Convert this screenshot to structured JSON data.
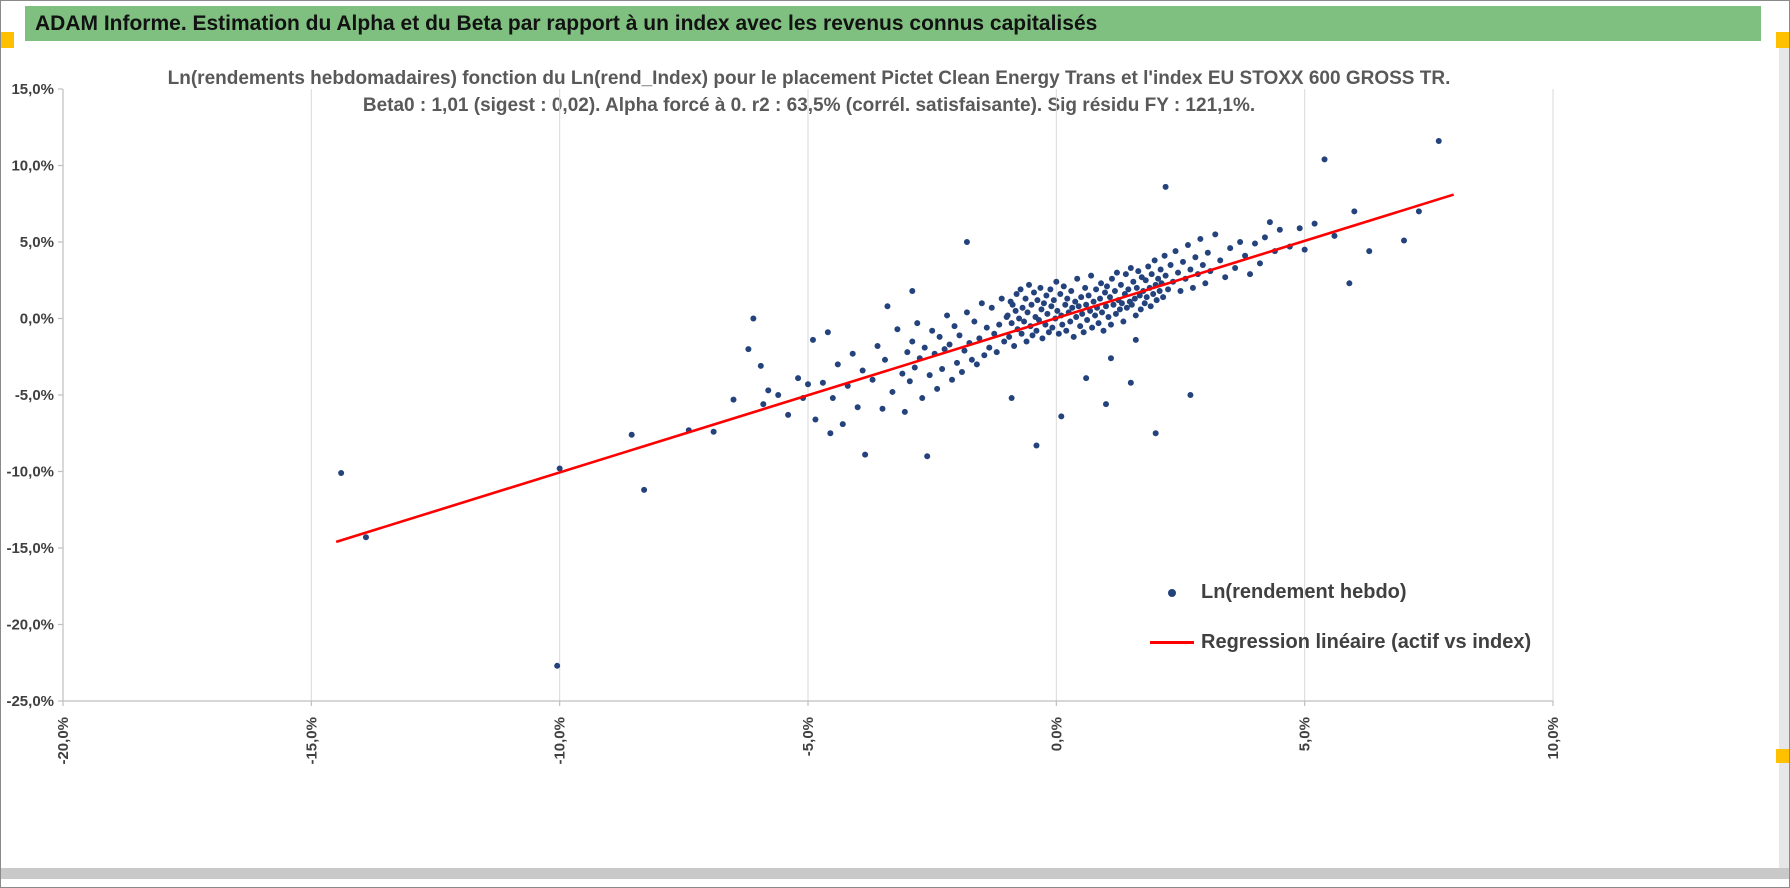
{
  "header": {
    "title": "ADAM Informe. Estimation du Alpha et du Beta par rapport à un index avec les revenus connus capitalisés",
    "bg_color": "#7FC080",
    "accent_color": "#FFC000"
  },
  "chart_data": {
    "type": "scatter",
    "title_line1": "Ln(rendements hebdomadaires) fonction du Ln(rend_Index) pour le placement Pictet Clean Energy Trans et l'index EU STOXX 600 GROSS TR.",
    "title_line2": "Beta0 : 1,01 (sigest : 0,02). Alpha forcé à 0. r2 : 63,5% (corrél. satisfaisante). Sig résidu FY : 121,1%.",
    "xlabel": "",
    "ylabel": "",
    "xlim": [
      -20,
      10
    ],
    "ylim": [
      -25,
      15
    ],
    "grid": "vertical-only",
    "x_ticks": [
      {
        "v": -20,
        "label": "-20,0%"
      },
      {
        "v": -15,
        "label": "-15,0%"
      },
      {
        "v": -10,
        "label": "-10,0%"
      },
      {
        "v": -5,
        "label": "-5,0%"
      },
      {
        "v": 0,
        "label": "0,0%"
      },
      {
        "v": 5,
        "label": "5,0%"
      },
      {
        "v": 10,
        "label": "10,0%"
      }
    ],
    "y_ticks": [
      {
        "v": 15,
        "label": "15,0%"
      },
      {
        "v": 10,
        "label": "10,0%"
      },
      {
        "v": 5,
        "label": "5,0%"
      },
      {
        "v": 0,
        "label": "0,0%"
      },
      {
        "v": -5,
        "label": "-5,0%"
      },
      {
        "v": -10,
        "label": "-10,0%"
      },
      {
        "v": -15,
        "label": "-15,0%"
      },
      {
        "v": -20,
        "label": "-20,0%"
      },
      {
        "v": -25,
        "label": "-25,0%"
      }
    ],
    "colors": {
      "point": "#24427C",
      "line": "#FF0000",
      "grid": "#D9D9D9",
      "axis": "#BFBFBF",
      "tick_label": "#404040",
      "title": "#595959"
    },
    "legend": {
      "position": "right-middle",
      "entries": [
        {
          "label": "Ln(rendement hebdo)",
          "marker": "dot",
          "color": "#24427C"
        },
        {
          "label": "Regression linéaire (actif vs index)",
          "marker": "line",
          "color": "#FF0000"
        }
      ]
    },
    "stats": {
      "beta0": "1,01",
      "sigest": "0,02",
      "alpha": "forcé à 0",
      "r2": "63,5%",
      "sig_residu_FY": "121,1%"
    },
    "series": [
      {
        "name": "Ln(rendement hebdo)",
        "type": "scatter",
        "color": "#24427C",
        "points": [
          [
            -14.4,
            -10.1
          ],
          [
            -13.9,
            -14.3
          ],
          [
            -10.05,
            -22.7
          ],
          [
            -10.0,
            -9.8
          ],
          [
            -8.55,
            -7.6
          ],
          [
            -8.3,
            -11.2
          ],
          [
            -7.4,
            -7.3
          ],
          [
            -6.9,
            -7.4
          ],
          [
            -6.5,
            -5.3
          ],
          [
            -6.2,
            -2.0
          ],
          [
            -6.1,
            0.0
          ],
          [
            -5.95,
            -3.1
          ],
          [
            -5.9,
            -5.6
          ],
          [
            -5.8,
            -4.7
          ],
          [
            -5.6,
            -5.0
          ],
          [
            -5.4,
            -6.3
          ],
          [
            -5.2,
            -3.9
          ],
          [
            -5.1,
            -5.2
          ],
          [
            -5.0,
            -4.3
          ],
          [
            -4.9,
            -1.4
          ],
          [
            -4.85,
            -6.6
          ],
          [
            -4.7,
            -4.2
          ],
          [
            -4.6,
            -0.9
          ],
          [
            -4.55,
            -7.5
          ],
          [
            -4.5,
            -5.2
          ],
          [
            -4.4,
            -3.0
          ],
          [
            -4.3,
            -6.9
          ],
          [
            -4.2,
            -4.4
          ],
          [
            -4.1,
            -2.3
          ],
          [
            -4.0,
            -5.8
          ],
          [
            -3.9,
            -3.4
          ],
          [
            -3.85,
            -8.9
          ],
          [
            -3.7,
            -4.0
          ],
          [
            -3.6,
            -1.8
          ],
          [
            -3.5,
            -5.9
          ],
          [
            -3.45,
            -2.7
          ],
          [
            -3.4,
            0.8
          ],
          [
            -3.3,
            -4.8
          ],
          [
            -3.2,
            -0.7
          ],
          [
            -3.1,
            -3.6
          ],
          [
            -3.05,
            -6.1
          ],
          [
            -3.0,
            -2.2
          ],
          [
            -2.95,
            -4.1
          ],
          [
            -2.9,
            1.8
          ],
          [
            -2.9,
            -1.5
          ],
          [
            -2.85,
            -3.2
          ],
          [
            -2.8,
            -0.3
          ],
          [
            -2.75,
            -2.6
          ],
          [
            -2.7,
            -5.2
          ],
          [
            -2.65,
            -1.9
          ],
          [
            -2.6,
            -9.0
          ],
          [
            -2.55,
            -3.7
          ],
          [
            -2.5,
            -0.8
          ],
          [
            -2.45,
            -2.3
          ],
          [
            -2.4,
            -4.6
          ],
          [
            -2.35,
            -1.2
          ],
          [
            -2.3,
            -3.3
          ],
          [
            -2.25,
            -2.0
          ],
          [
            -2.2,
            0.2
          ],
          [
            -2.15,
            -1.7
          ],
          [
            -2.1,
            -4.0
          ],
          [
            -2.05,
            -0.5
          ],
          [
            -2.0,
            -2.9
          ],
          [
            -1.95,
            -1.1
          ],
          [
            -1.9,
            -3.5
          ],
          [
            -1.85,
            -2.1
          ],
          [
            -1.8,
            5.0
          ],
          [
            -1.8,
            0.4
          ],
          [
            -1.75,
            -1.6
          ],
          [
            -1.7,
            -2.7
          ],
          [
            -1.65,
            -0.2
          ],
          [
            -1.6,
            -3.0
          ],
          [
            -1.55,
            -1.3
          ],
          [
            -1.5,
            1.0
          ],
          [
            -1.45,
            -2.4
          ],
          [
            -1.4,
            -0.6
          ],
          [
            -1.35,
            -1.9
          ],
          [
            -1.3,
            0.7
          ],
          [
            -1.25,
            -1.0
          ],
          [
            -1.2,
            -2.2
          ],
          [
            -1.15,
            -0.4
          ],
          [
            -1.1,
            1.3
          ],
          [
            -1.05,
            -1.5
          ],
          [
            -1.0,
            0.1
          ],
          [
            -0.98,
            0.2
          ],
          [
            -0.95,
            -1.2
          ],
          [
            -0.92,
            1.1
          ],
          [
            -0.9,
            -0.3
          ],
          [
            -0.88,
            0.9
          ],
          [
            -0.85,
            -1.8
          ],
          [
            -0.82,
            0.5
          ],
          [
            -0.8,
            1.6
          ],
          [
            -0.78,
            -0.7
          ],
          [
            -0.75,
            0.0
          ],
          [
            -0.72,
            1.9
          ],
          [
            -0.7,
            -1.0
          ],
          [
            -0.68,
            0.7
          ],
          [
            -0.65,
            -0.2
          ],
          [
            -0.62,
            1.3
          ],
          [
            -0.6,
            -1.5
          ],
          [
            -0.58,
            0.4
          ],
          [
            -0.55,
            2.2
          ],
          [
            -0.52,
            -0.5
          ],
          [
            -0.5,
            0.9
          ],
          [
            -0.48,
            -1.1
          ],
          [
            -0.45,
            1.7
          ],
          [
            -0.42,
            0.1
          ],
          [
            -0.4,
            -0.8
          ],
          [
            -0.38,
            1.2
          ],
          [
            -0.35,
            -0.1
          ],
          [
            -0.32,
            2.0
          ],
          [
            -0.3,
            0.6
          ],
          [
            -0.28,
            -1.3
          ],
          [
            -0.25,
            1.0
          ],
          [
            -0.22,
            -0.4
          ],
          [
            -0.2,
            1.5
          ],
          [
            -0.18,
            0.3
          ],
          [
            -0.15,
            -0.9
          ],
          [
            -0.12,
            1.9
          ],
          [
            -0.1,
            0.8
          ],
          [
            -0.08,
            -0.6
          ],
          [
            -0.05,
            1.2
          ],
          [
            -0.02,
            0.0
          ],
          [
            0.0,
            2.4
          ],
          [
            0.02,
            0.5
          ],
          [
            0.05,
            -1.0
          ],
          [
            0.08,
            1.6
          ],
          [
            0.1,
            0.2
          ],
          [
            0.12,
            -0.4
          ],
          [
            0.15,
            2.1
          ],
          [
            0.18,
            0.9
          ],
          [
            0.2,
            -0.8
          ],
          [
            0.22,
            1.3
          ],
          [
            0.25,
            0.4
          ],
          [
            0.28,
            -0.2
          ],
          [
            0.3,
            1.8
          ],
          [
            0.32,
            0.7
          ],
          [
            0.35,
            -1.2
          ],
          [
            0.38,
            1.1
          ],
          [
            0.4,
            0.1
          ],
          [
            0.42,
            2.6
          ],
          [
            0.45,
            0.8
          ],
          [
            0.48,
            -0.5
          ],
          [
            0.5,
            1.4
          ],
          [
            0.52,
            0.3
          ],
          [
            0.55,
            -0.9
          ],
          [
            0.58,
            2.0
          ],
          [
            0.6,
            0.9
          ],
          [
            0.62,
            -0.1
          ],
          [
            0.65,
            1.5
          ],
          [
            0.68,
            0.5
          ],
          [
            0.7,
            2.8
          ],
          [
            0.72,
            -0.6
          ],
          [
            0.75,
            1.1
          ],
          [
            0.78,
            0.2
          ],
          [
            0.8,
            1.9
          ],
          [
            0.82,
            0.7
          ],
          [
            0.85,
            -0.3
          ],
          [
            0.88,
            1.3
          ],
          [
            0.9,
            2.3
          ],
          [
            0.92,
            0.4
          ],
          [
            0.95,
            -0.8
          ],
          [
            0.98,
            1.7
          ],
          [
            1.0,
            0.8
          ],
          [
            1.02,
            2.1
          ],
          [
            1.05,
            0.1
          ],
          [
            1.08,
            1.4
          ],
          [
            1.1,
            -0.4
          ],
          [
            1.12,
            2.6
          ],
          [
            1.15,
            0.9
          ],
          [
            1.18,
            1.8
          ],
          [
            1.2,
            0.3
          ],
          [
            1.22,
            3.0
          ],
          [
            1.25,
            1.2
          ],
          [
            1.28,
            0.6
          ],
          [
            1.3,
            2.2
          ],
          [
            1.32,
            1.0
          ],
          [
            1.35,
            -0.2
          ],
          [
            1.38,
            1.6
          ],
          [
            1.4,
            2.9
          ],
          [
            1.42,
            0.7
          ],
          [
            1.45,
            1.9
          ],
          [
            1.48,
            1.1
          ],
          [
            1.5,
            3.3
          ],
          [
            1.52,
            0.9
          ],
          [
            1.55,
            2.4
          ],
          [
            1.58,
            1.3
          ],
          [
            1.6,
            0.2
          ],
          [
            1.62,
            2.0
          ],
          [
            1.65,
            3.1
          ],
          [
            1.68,
            1.5
          ],
          [
            1.7,
            0.6
          ],
          [
            1.72,
            2.7
          ],
          [
            1.75,
            1.8
          ],
          [
            1.78,
            1.0
          ],
          [
            1.8,
            2.5
          ],
          [
            1.82,
            1.4
          ],
          [
            1.85,
            3.4
          ],
          [
            1.88,
            2.0
          ],
          [
            1.9,
            0.8
          ],
          [
            1.92,
            2.9
          ],
          [
            1.95,
            1.6
          ],
          [
            1.98,
            3.8
          ],
          [
            2.0,
            2.2
          ],
          [
            2.02,
            1.2
          ],
          [
            2.05,
            2.6
          ],
          [
            2.08,
            1.8
          ],
          [
            2.1,
            3.2
          ],
          [
            2.12,
            2.3
          ],
          [
            2.15,
            1.4
          ],
          [
            2.18,
            4.1
          ],
          [
            2.2,
            2.8
          ],
          [
            2.25,
            1.9
          ],
          [
            2.3,
            3.5
          ],
          [
            -0.9,
            -5.2
          ],
          [
            -0.4,
            -8.3
          ],
          [
            0.1,
            -6.4
          ],
          [
            0.6,
            -3.9
          ],
          [
            1.0,
            -5.6
          ],
          [
            1.1,
            -2.6
          ],
          [
            1.5,
            -4.2
          ],
          [
            1.6,
            -1.4
          ],
          [
            2.0,
            -7.5
          ],
          [
            2.7,
            -5.0
          ],
          [
            2.2,
            8.6
          ],
          [
            2.35,
            2.4
          ],
          [
            2.4,
            4.4
          ],
          [
            2.45,
            3.0
          ],
          [
            2.5,
            1.8
          ],
          [
            2.55,
            3.7
          ],
          [
            2.6,
            2.6
          ],
          [
            2.65,
            4.8
          ],
          [
            2.7,
            3.2
          ],
          [
            2.75,
            2.0
          ],
          [
            2.8,
            4.0
          ],
          [
            2.85,
            2.9
          ],
          [
            2.9,
            5.2
          ],
          [
            2.95,
            3.5
          ],
          [
            3.0,
            2.3
          ],
          [
            3.05,
            4.3
          ],
          [
            3.1,
            3.1
          ],
          [
            3.2,
            5.5
          ],
          [
            3.3,
            3.8
          ],
          [
            3.4,
            2.7
          ],
          [
            3.5,
            4.6
          ],
          [
            3.6,
            3.3
          ],
          [
            3.7,
            5.0
          ],
          [
            3.8,
            4.1
          ],
          [
            3.9,
            2.9
          ],
          [
            4.0,
            4.9
          ],
          [
            4.1,
            3.6
          ],
          [
            4.2,
            5.3
          ],
          [
            4.3,
            6.3
          ],
          [
            4.4,
            4.4
          ],
          [
            4.5,
            5.8
          ],
          [
            4.7,
            4.7
          ],
          [
            4.9,
            5.9
          ],
          [
            5.0,
            4.5
          ],
          [
            5.2,
            6.2
          ],
          [
            5.4,
            10.4
          ],
          [
            5.6,
            5.4
          ],
          [
            5.9,
            2.3
          ],
          [
            6.0,
            7.0
          ],
          [
            6.3,
            4.4
          ],
          [
            7.0,
            5.1
          ],
          [
            7.3,
            7.0
          ],
          [
            7.7,
            11.6
          ]
        ]
      },
      {
        "name": "Regression linéaire (actif vs index)",
        "type": "line",
        "color": "#FF0000",
        "points": [
          [
            -14.5,
            -14.6
          ],
          [
            8.0,
            8.1
          ]
        ]
      }
    ]
  }
}
